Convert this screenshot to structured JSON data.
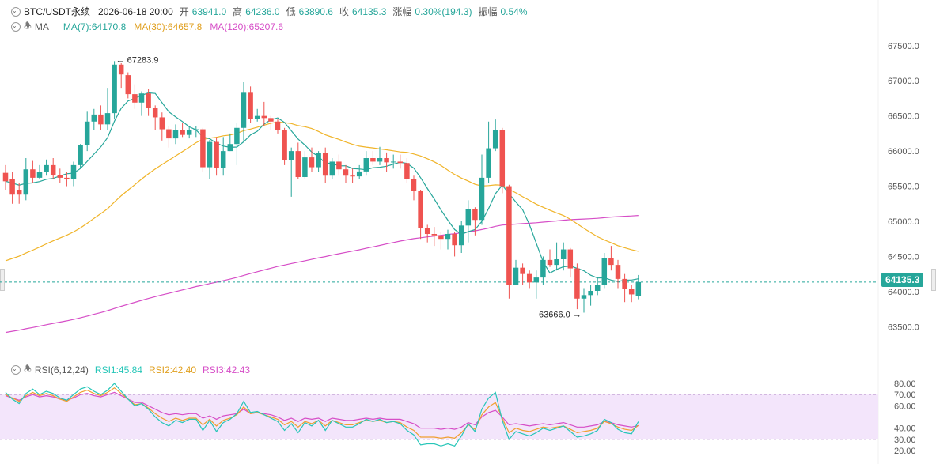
{
  "header": {
    "symbol": "BTC/USDT永续",
    "datetime": "2026-06-18 20:00",
    "open_label": "开",
    "open": "63941.0",
    "high_label": "高",
    "high": "64236.0",
    "low_label": "低",
    "low": "63890.6",
    "close_label": "收",
    "close": "64135.3",
    "change_label": "涨幅",
    "change": "0.30%(194.3)",
    "amp_label": "振幅",
    "amp": "0.54%"
  },
  "ma_legend": {
    "label": "MA",
    "ma7": "MA(7):64170.8",
    "ma30": "MA(30):64657.8",
    "ma120": "MA(120):65207.6"
  },
  "rsi_legend": {
    "label": "RSI(6,12,24)",
    "rsi1": "RSI1:45.84",
    "rsi2": "RSI2:42.40",
    "rsi3": "RSI3:42.43"
  },
  "colors": {
    "up": "#26a69a",
    "down": "#ef5350",
    "ma7": "#26a69a",
    "ma30": "#f0b429",
    "ma120": "#d64ec7",
    "rsi1": "#26c6b8",
    "rsi2": "#f0a030",
    "rsi3": "#d64ec7",
    "rsi_band": "#f3e5fb"
  },
  "current_price": "64135.3",
  "chart_data": [
    {
      "type": "candlestick",
      "ylim": [
        63200,
        67700
      ],
      "yticks": [
        "63500.0",
        "64000.0",
        "64500.0",
        "65000.0",
        "65500.0",
        "66000.0",
        "66500.0",
        "67000.0",
        "67500.0"
      ],
      "max_label": "67283.9",
      "min_label": "63666.0",
      "current": 64135.3,
      "candles": [
        [
          65690,
          65570,
          65800,
          65450
        ],
        [
          65600,
          65380,
          65700,
          65250
        ],
        [
          65450,
          65380,
          65550,
          65250
        ],
        [
          65380,
          65740,
          65900,
          65300
        ],
        [
          65740,
          65620,
          65860,
          65550
        ],
        [
          65620,
          65700,
          65800,
          65600
        ],
        [
          65700,
          65800,
          65880,
          65650
        ],
        [
          65800,
          65660,
          65900,
          65600
        ],
        [
          65660,
          65620,
          65750,
          65550
        ],
        [
          65620,
          65600,
          65700,
          65500
        ],
        [
          65600,
          65800,
          65850,
          65500
        ],
        [
          65800,
          66080,
          66100,
          65750
        ],
        [
          66080,
          66420,
          66560,
          66000
        ],
        [
          66420,
          66520,
          66600,
          66300
        ],
        [
          66520,
          66380,
          66650,
          66300
        ],
        [
          66380,
          66540,
          66900,
          66300
        ],
        [
          66540,
          67230,
          67280,
          66450
        ],
        [
          67230,
          67090,
          67250,
          66900
        ],
        [
          67080,
          66810,
          67120,
          66750
        ],
        [
          66810,
          66690,
          66950,
          66600
        ],
        [
          66690,
          66820,
          66850,
          66500
        ],
        [
          66820,
          66620,
          66880,
          66500
        ],
        [
          66620,
          66480,
          66650,
          66300
        ],
        [
          66480,
          66310,
          66550,
          66150
        ],
        [
          66310,
          66180,
          66350,
          66050
        ],
        [
          66180,
          66300,
          66380,
          66100
        ],
        [
          66300,
          66230,
          66400,
          66200
        ],
        [
          66230,
          66300,
          66350,
          66180
        ],
        [
          66300,
          66310,
          66350,
          66200
        ],
        [
          66310,
          65770,
          66330,
          65700
        ],
        [
          65770,
          66130,
          66160,
          65600
        ],
        [
          66130,
          65760,
          66200,
          65650
        ],
        [
          65760,
          66000,
          66200,
          65650
        ],
        [
          66000,
          66100,
          66250,
          66000
        ],
        [
          66100,
          66330,
          66400,
          65800
        ],
        [
          66330,
          66830,
          66980,
          66150
        ],
        [
          66830,
          66460,
          66920,
          66400
        ],
        [
          66460,
          66500,
          66600,
          66420
        ],
        [
          66500,
          66470,
          66700,
          66350
        ],
        [
          66470,
          66420,
          66500,
          66300
        ],
        [
          66420,
          66300,
          66450,
          66250
        ],
        [
          66300,
          65870,
          66330,
          65800
        ],
        [
          65870,
          66000,
          66050,
          65350
        ],
        [
          66000,
          65630,
          66120,
          65600
        ],
        [
          65630,
          65910,
          66000,
          65600
        ],
        [
          65910,
          65770,
          66050,
          65700
        ],
        [
          65770,
          65970,
          66000,
          65700
        ],
        [
          65970,
          65650,
          66050,
          65550
        ],
        [
          65650,
          65850,
          65900,
          65600
        ],
        [
          65850,
          65740,
          65950,
          65650
        ],
        [
          65740,
          65650,
          65800,
          65550
        ],
        [
          65650,
          65640,
          65750,
          65550
        ],
        [
          65640,
          65710,
          65800,
          65600
        ],
        [
          65710,
          65900,
          66000,
          65650
        ],
        [
          65900,
          65850,
          66000,
          65800
        ],
        [
          65850,
          65900,
          66060,
          65800
        ],
        [
          65900,
          65840,
          65980,
          65700
        ],
        [
          65840,
          65850,
          65950,
          65750
        ],
        [
          65850,
          65830,
          65950,
          65750
        ],
        [
          65830,
          65600,
          65900,
          65550
        ],
        [
          65600,
          65430,
          65650,
          65300
        ],
        [
          65430,
          64900,
          65450,
          64750
        ],
        [
          64900,
          64820,
          64950,
          64700
        ],
        [
          64820,
          64800,
          64920,
          64650
        ],
        [
          64800,
          64750,
          64850,
          64600
        ],
        [
          64750,
          64820,
          64880,
          64600
        ],
        [
          64820,
          64660,
          64850,
          64500
        ],
        [
          64660,
          64940,
          65000,
          64550
        ],
        [
          64940,
          65180,
          65300,
          64700
        ],
        [
          65180,
          65020,
          65200,
          64800
        ],
        [
          65020,
          65620,
          65950,
          64950
        ],
        [
          65620,
          66040,
          66420,
          65550
        ],
        [
          66040,
          66300,
          66450,
          66000
        ],
        [
          66300,
          65500,
          66330,
          65400
        ],
        [
          65500,
          64100,
          65520,
          63900
        ],
        [
          64100,
          64340,
          64450,
          64100
        ],
        [
          64340,
          64250,
          64400,
          64100
        ],
        [
          64250,
          64130,
          64300,
          64050
        ],
        [
          64130,
          64200,
          64300,
          63900
        ],
        [
          64200,
          64450,
          64500,
          64100
        ],
        [
          64450,
          64380,
          64600,
          64350
        ],
        [
          64380,
          64460,
          64700,
          64300
        ],
        [
          64460,
          64600,
          64700,
          64300
        ],
        [
          64600,
          64330,
          64620,
          64200
        ],
        [
          64330,
          63900,
          64400,
          63750
        ],
        [
          63900,
          63950,
          64050,
          63700
        ],
        [
          63950,
          64010,
          64100,
          63800
        ],
        [
          64010,
          64100,
          64200,
          63950
        ],
        [
          64100,
          64480,
          64550,
          64050
        ],
        [
          64480,
          64380,
          64650,
          64300
        ],
        [
          64380,
          64180,
          64450,
          64050
        ],
        [
          64180,
          64040,
          64250,
          63850
        ],
        [
          64040,
          63960,
          64100,
          63850
        ],
        [
          63941,
          64135.3,
          64236,
          63890.6
        ]
      ]
    },
    {
      "type": "line",
      "name": "RSI",
      "ylim": [
        20,
        85
      ],
      "yticks": [
        "20.00",
        "30.00",
        "40.00",
        "60.00",
        "70.00",
        "80.00"
      ],
      "band": [
        30,
        70
      ],
      "series": [
        {
          "name": "RSI1",
          "values": [
            72,
            66,
            62,
            71,
            75,
            70,
            73,
            71,
            67,
            65,
            70,
            75,
            77,
            73,
            70,
            74,
            80,
            73,
            66,
            60,
            62,
            57,
            50,
            45,
            42,
            47,
            45,
            48,
            48,
            38,
            47,
            37,
            45,
            48,
            53,
            64,
            54,
            55,
            52,
            49,
            46,
            38,
            44,
            36,
            45,
            42,
            47,
            38,
            47,
            44,
            41,
            41,
            44,
            48,
            46,
            48,
            45,
            46,
            44,
            38,
            34,
            25,
            26,
            26,
            24,
            26,
            24,
            33,
            44,
            37,
            57,
            67,
            72,
            47,
            30,
            37,
            35,
            33,
            36,
            40,
            38,
            40,
            42,
            37,
            32,
            33,
            35,
            38,
            48,
            45,
            39,
            36,
            35,
            45.84
          ]
        },
        {
          "name": "RSI2",
          "values": [
            70,
            67,
            64,
            69,
            72,
            69,
            71,
            69,
            66,
            64,
            68,
            72,
            74,
            71,
            69,
            72,
            76,
            71,
            66,
            61,
            62,
            58,
            53,
            49,
            46,
            49,
            47,
            49,
            49,
            43,
            48,
            42,
            47,
            49,
            52,
            59,
            53,
            54,
            52,
            50,
            48,
            43,
            46,
            41,
            46,
            44,
            47,
            42,
            47,
            45,
            43,
            43,
            45,
            47,
            46,
            47,
            45,
            46,
            45,
            41,
            38,
            32,
            32,
            32,
            31,
            32,
            31,
            36,
            43,
            39,
            52,
            59,
            63,
            49,
            36,
            40,
            38,
            37,
            39,
            41,
            40,
            41,
            42,
            39,
            36,
            37,
            38,
            40,
            46,
            44,
            41,
            39,
            38,
            42.4
          ]
        },
        {
          "name": "RSI3",
          "values": [
            69,
            67,
            65,
            68,
            70,
            68,
            69,
            68,
            66,
            65,
            67,
            70,
            71,
            69,
            68,
            70,
            72,
            69,
            66,
            63,
            63,
            60,
            57,
            54,
            52,
            53,
            52,
            53,
            53,
            49,
            51,
            48,
            51,
            52,
            53,
            57,
            53,
            54,
            53,
            52,
            50,
            47,
            49,
            46,
            49,
            48,
            49,
            46,
            49,
            48,
            47,
            47,
            48,
            49,
            48,
            49,
            48,
            48,
            48,
            46,
            44,
            40,
            40,
            40,
            39,
            40,
            39,
            41,
            45,
            43,
            50,
            54,
            56,
            50,
            43,
            44,
            43,
            42,
            43,
            44,
            43,
            44,
            45,
            43,
            41,
            41,
            42,
            43,
            46,
            45,
            43,
            42,
            41,
            42.43
          ]
        }
      ]
    }
  ]
}
